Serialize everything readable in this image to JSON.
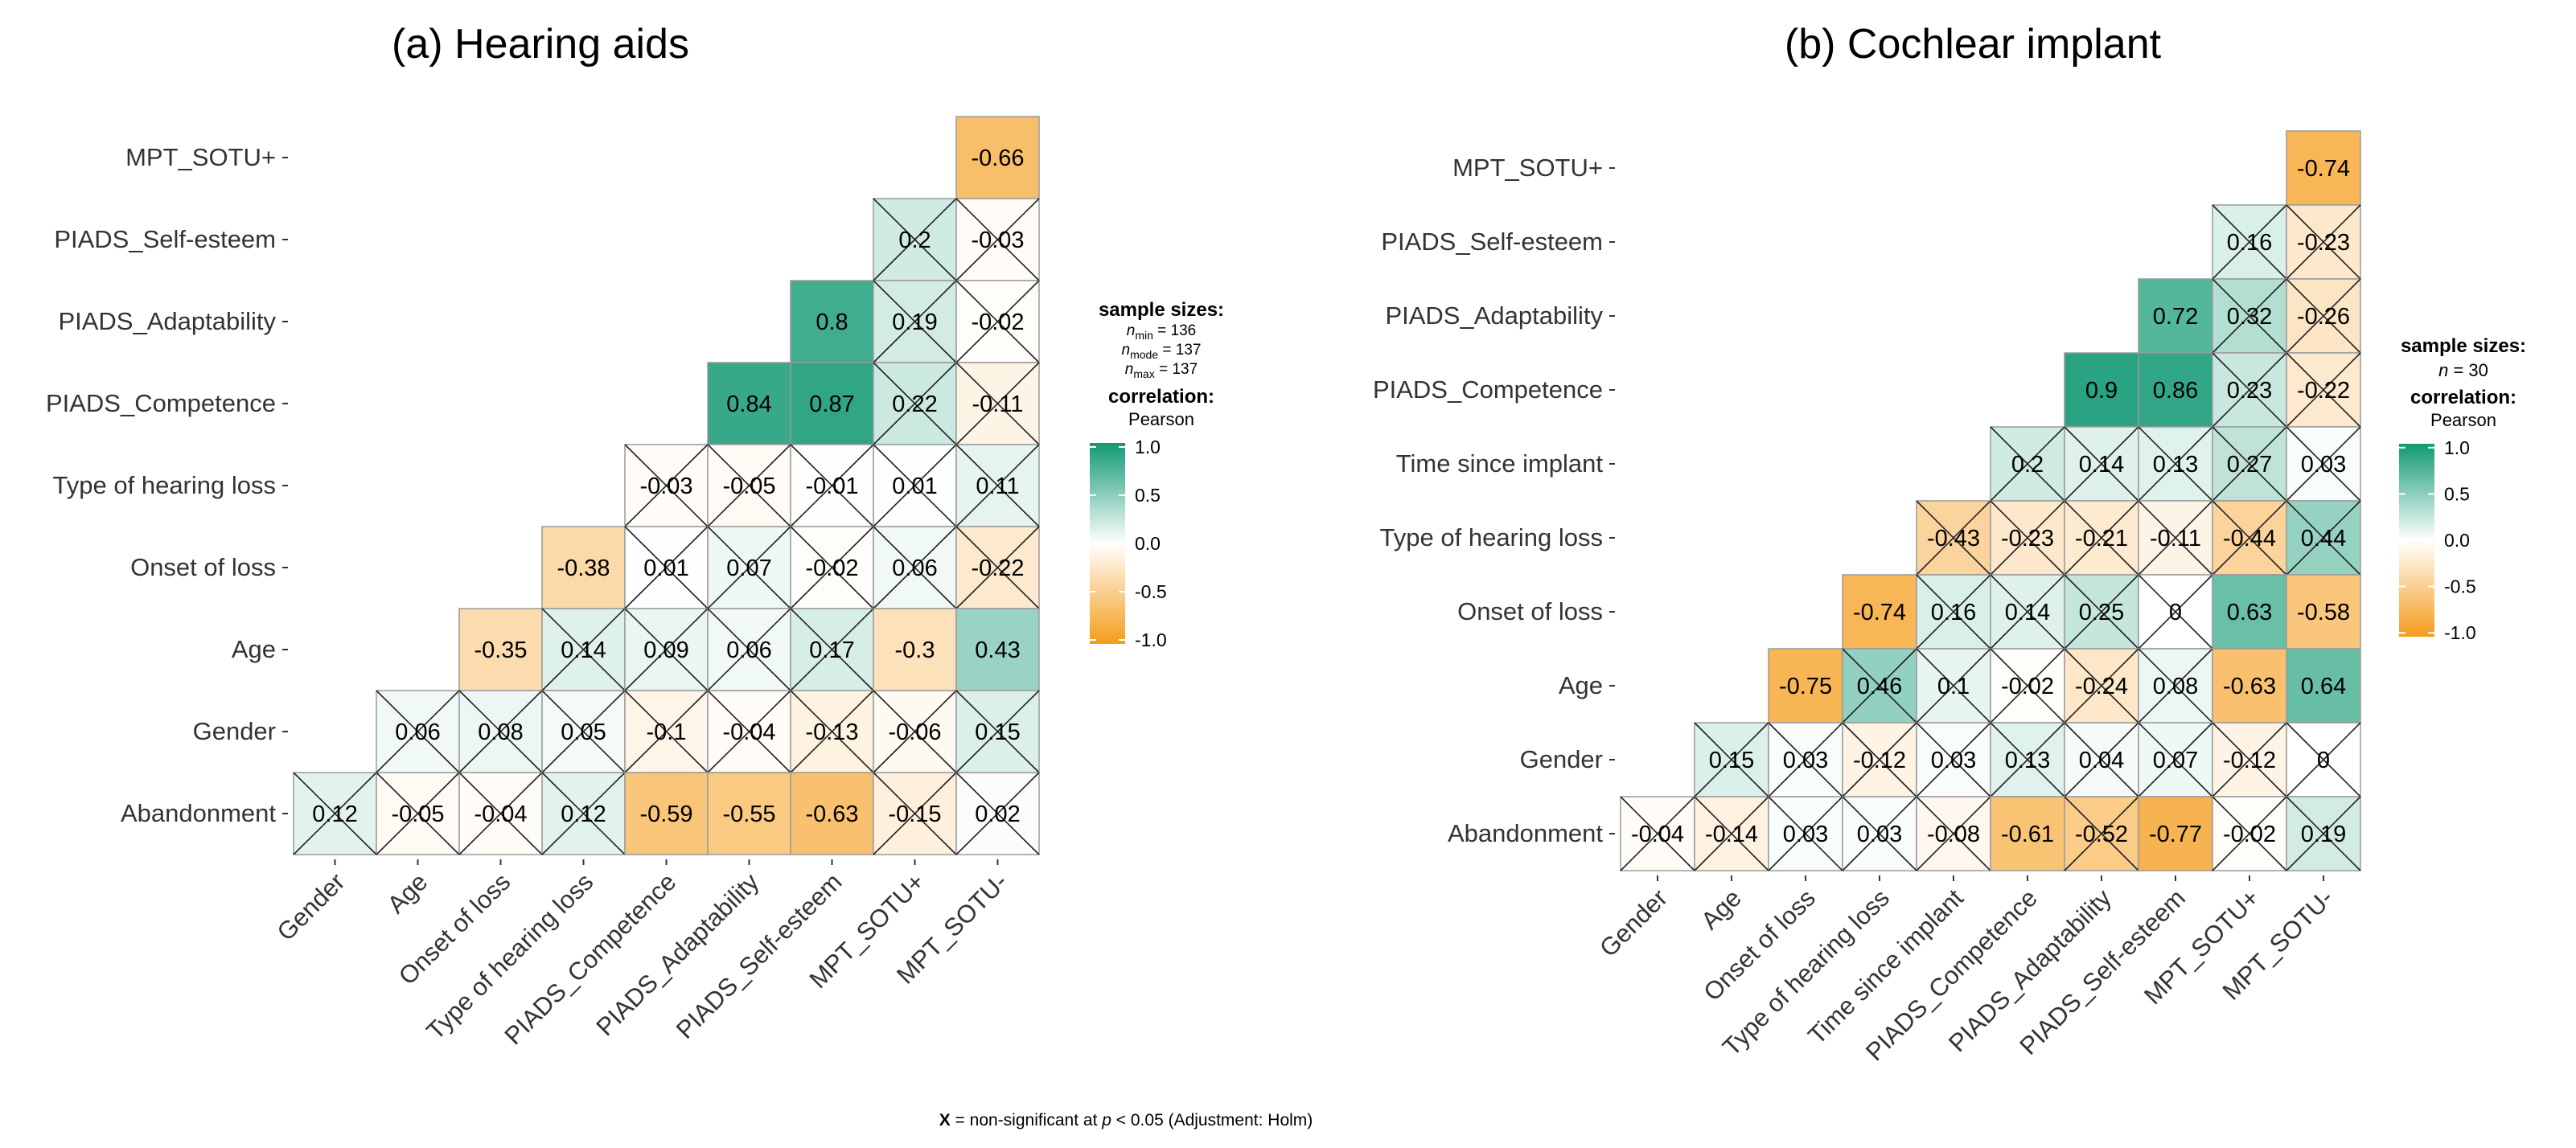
{
  "chart_data": [
    {
      "type": "heatmap",
      "title": "(a) Hearing aids",
      "rows": [
        "MPT_SOTU+",
        "PIADS_Self-esteem",
        "PIADS_Adaptability",
        "PIADS_Competence",
        "Type of hearing loss",
        "Onset of loss",
        "Age",
        "Gender",
        "Abandonment"
      ],
      "columns": [
        "Gender",
        "Age",
        "Onset of loss",
        "Type of hearing loss",
        "PIADS_Competence",
        "PIADS_Adaptability",
        "PIADS_Self-esteem",
        "MPT_SOTU+",
        "MPT_SOTU-"
      ],
      "values": [
        [
          null,
          null,
          null,
          null,
          null,
          null,
          null,
          null,
          -0.66
        ],
        [
          null,
          null,
          null,
          null,
          null,
          null,
          null,
          0.2,
          -0.03
        ],
        [
          null,
          null,
          null,
          null,
          null,
          null,
          0.8,
          0.19,
          -0.02
        ],
        [
          null,
          null,
          null,
          null,
          null,
          0.84,
          0.87,
          0.22,
          -0.11
        ],
        [
          null,
          null,
          null,
          null,
          -0.03,
          -0.05,
          -0.01,
          0.01,
          0.11
        ],
        [
          null,
          null,
          null,
          -0.38,
          0.01,
          0.07,
          -0.02,
          0.06,
          -0.22
        ],
        [
          null,
          null,
          -0.35,
          0.14,
          0.09,
          0.06,
          0.17,
          -0.3,
          0.43
        ],
        [
          null,
          0.06,
          0.08,
          0.05,
          -0.1,
          -0.04,
          -0.13,
          -0.06,
          0.15
        ],
        [
          0.12,
          -0.05,
          -0.04,
          0.12,
          -0.59,
          -0.55,
          -0.63,
          -0.15,
          0.02
        ]
      ],
      "nonsignificant": [
        [
          false,
          false,
          false,
          false,
          false,
          false,
          false,
          false,
          false
        ],
        [
          false,
          false,
          false,
          false,
          false,
          false,
          false,
          true,
          true
        ],
        [
          false,
          false,
          false,
          false,
          false,
          false,
          false,
          true,
          true
        ],
        [
          false,
          false,
          false,
          false,
          false,
          false,
          false,
          true,
          true
        ],
        [
          false,
          false,
          false,
          false,
          true,
          true,
          true,
          true,
          true
        ],
        [
          false,
          false,
          false,
          false,
          true,
          true,
          true,
          true,
          true
        ],
        [
          false,
          false,
          false,
          true,
          true,
          true,
          true,
          false,
          false
        ],
        [
          false,
          true,
          true,
          true,
          true,
          true,
          true,
          true,
          true
        ],
        [
          true,
          true,
          true,
          true,
          false,
          false,
          false,
          true,
          true
        ]
      ],
      "legend": {
        "heading": "sample sizes:",
        "sample_lines": [
          {
            "sub": "min",
            "text": " = 136"
          },
          {
            "sub": "mode",
            "text": " = 137"
          },
          {
            "sub": "max",
            "text": " = 137"
          }
        ],
        "correlation_heading": "correlation:",
        "method": "Pearson",
        "ticks": [
          "1.0",
          "0.5",
          "0.0",
          "-0.5",
          "-1.0"
        ]
      }
    },
    {
      "type": "heatmap",
      "title": "(b) Cochlear implant",
      "rows": [
        "MPT_SOTU+",
        "PIADS_Self-esteem",
        "PIADS_Adaptability",
        "PIADS_Competence",
        "Time since implant",
        "Type of hearing loss",
        "Onset of loss",
        "Age",
        "Gender",
        "Abandonment"
      ],
      "columns": [
        "Gender",
        "Age",
        "Onset of loss",
        "Type of hearing loss",
        "Time since implant",
        "PIADS_Competence",
        "PIADS_Adaptability",
        "PIADS_Self-esteem",
        "MPT_SOTU+",
        "MPT_SOTU-"
      ],
      "values": [
        [
          null,
          null,
          null,
          null,
          null,
          null,
          null,
          null,
          null,
          -0.74
        ],
        [
          null,
          null,
          null,
          null,
          null,
          null,
          null,
          null,
          0.16,
          -0.23
        ],
        [
          null,
          null,
          null,
          null,
          null,
          null,
          null,
          0.72,
          0.32,
          -0.26
        ],
        [
          null,
          null,
          null,
          null,
          null,
          null,
          0.9,
          0.86,
          0.23,
          -0.22
        ],
        [
          null,
          null,
          null,
          null,
          null,
          0.2,
          0.14,
          0.13,
          0.27,
          0.03
        ],
        [
          null,
          null,
          null,
          null,
          -0.43,
          -0.23,
          -0.21,
          -0.11,
          -0.44,
          0.44
        ],
        [
          null,
          null,
          null,
          -0.74,
          0.16,
          0.14,
          0.25,
          0,
          0.63,
          -0.58
        ],
        [
          null,
          null,
          -0.75,
          0.46,
          0.1,
          -0.02,
          -0.24,
          0.08,
          -0.63,
          0.64
        ],
        [
          null,
          0.15,
          0.03,
          -0.12,
          0.03,
          0.13,
          0.04,
          0.07,
          -0.12,
          0
        ],
        [
          -0.04,
          -0.14,
          0.03,
          0.03,
          -0.08,
          -0.61,
          -0.52,
          -0.77,
          -0.02,
          0.19
        ]
      ],
      "nonsignificant": [
        [
          false,
          false,
          false,
          false,
          false,
          false,
          false,
          false,
          false,
          false
        ],
        [
          false,
          false,
          false,
          false,
          false,
          false,
          false,
          false,
          true,
          true
        ],
        [
          false,
          false,
          false,
          false,
          false,
          false,
          false,
          false,
          true,
          true
        ],
        [
          false,
          false,
          false,
          false,
          false,
          false,
          false,
          false,
          true,
          true
        ],
        [
          false,
          false,
          false,
          false,
          false,
          true,
          true,
          true,
          true,
          true
        ],
        [
          false,
          false,
          false,
          false,
          true,
          true,
          true,
          true,
          true,
          true
        ],
        [
          false,
          false,
          false,
          false,
          true,
          true,
          true,
          true,
          false,
          false
        ],
        [
          false,
          false,
          false,
          true,
          true,
          true,
          true,
          true,
          false,
          false
        ],
        [
          false,
          true,
          true,
          true,
          true,
          true,
          true,
          true,
          true,
          true
        ],
        [
          true,
          true,
          true,
          true,
          true,
          false,
          true,
          false,
          true,
          true
        ]
      ],
      "legend": {
        "heading": "sample sizes:",
        "sample_line": "n = 30",
        "correlation_heading": "correlation:",
        "method": "Pearson",
        "ticks": [
          "1.0",
          "0.5",
          "0.0",
          "-0.5",
          "-1.0"
        ]
      }
    }
  ],
  "colors": {
    "positive": "#119973",
    "negative": "#f59c1b",
    "neutral": "#ffffff",
    "cell_border": "#9a9a9a",
    "cross": "#222222"
  },
  "caption": {
    "bold": "X",
    "text": " = non-significant at ",
    "p": "p",
    "rest": " < 0.05 (Adjustment: Holm)"
  }
}
